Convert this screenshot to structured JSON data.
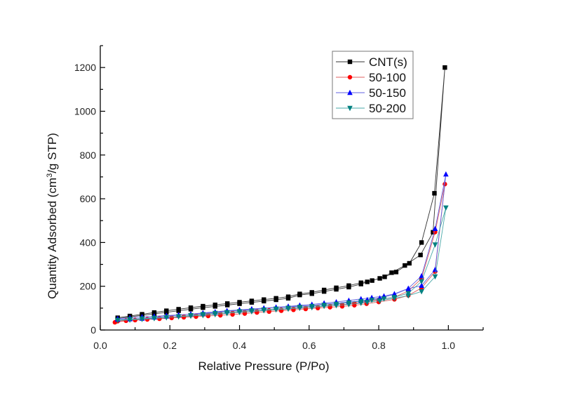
{
  "chart_data": {
    "type": "line",
    "title": "",
    "xlabel": "Relative Pressure (P/Po)",
    "ylabel_parts": [
      "Quantity Adsorbed (cm",
      "3",
      "/g STP)"
    ],
    "ylabel": "Quantity Adsorbed (cm3/g STP)",
    "xlim": [
      0.0,
      1.1
    ],
    "ylim": [
      0,
      1300
    ],
    "x_major_ticks": [
      0.0,
      0.2,
      0.4,
      0.6,
      0.8,
      1.0
    ],
    "x_minor_ticks": [
      0.1,
      0.3,
      0.5,
      0.7,
      0.9,
      1.1
    ],
    "x_tick_labels": [
      "0.0",
      "0.2",
      "0.4",
      "0.6",
      "0.8",
      "1.0"
    ],
    "y_major_ticks": [
      0,
      200,
      400,
      600,
      800,
      1000,
      1200
    ],
    "y_minor_ticks": [
      100,
      300,
      500,
      700,
      900,
      1100,
      1300
    ],
    "y_tick_labels": [
      "0",
      "200",
      "400",
      "600",
      "800",
      "1000",
      "1200"
    ],
    "grid": false,
    "legend_position": "top-right",
    "series": [
      {
        "name": "CNT(s)",
        "color": "#000000",
        "line_color": "#333333",
        "marker": "square",
        "x": [
          0.05,
          0.085,
          0.12,
          0.155,
          0.19,
          0.225,
          0.26,
          0.295,
          0.33,
          0.365,
          0.4,
          0.435,
          0.47,
          0.505,
          0.54,
          0.573,
          0.608,
          0.643,
          0.678,
          0.714,
          0.749,
          0.767,
          0.803,
          0.837,
          0.875,
          0.92,
          0.956,
          0.99,
          0.96,
          0.923,
          0.888,
          0.85,
          0.817,
          0.781,
          0.749,
          0.714,
          0.678,
          0.643,
          0.608,
          0.573,
          0.54,
          0.505,
          0.47,
          0.435,
          0.4,
          0.365,
          0.33,
          0.295,
          0.26,
          0.225,
          0.19,
          0.155,
          0.12,
          0.085,
          0.05
        ],
        "y": [
          52,
          60,
          67,
          74,
          81,
          88,
          95,
          102,
          108,
          114,
          120,
          126,
          132,
          138,
          145,
          160,
          166,
          176,
          186,
          196,
          210,
          220,
          236,
          262,
          295,
          343,
          447,
          1200,
          625,
          400,
          305,
          265,
          243,
          226,
          216,
          203,
          193,
          183,
          172,
          165,
          152,
          145,
          139,
          133,
          127,
          121,
          115,
          109,
          102,
          95,
          88,
          80,
          72,
          64,
          56
        ]
      },
      {
        "name": "50-100",
        "color": "#ff0000",
        "line_color": "#e06060",
        "marker": "circle",
        "x": [
          0.042,
          0.074,
          0.1,
          0.135,
          0.17,
          0.205,
          0.24,
          0.275,
          0.31,
          0.345,
          0.38,
          0.415,
          0.45,
          0.485,
          0.52,
          0.555,
          0.59,
          0.625,
          0.66,
          0.695,
          0.73,
          0.765,
          0.8,
          0.845,
          0.885,
          0.923,
          0.962,
          0.99,
          0.962,
          0.923,
          0.885,
          0.845,
          0.8,
          0.765,
          0.73,
          0.695,
          0.66,
          0.625,
          0.59,
          0.555,
          0.52,
          0.485,
          0.45,
          0.415,
          0.38,
          0.345,
          0.31,
          0.275,
          0.24,
          0.205,
          0.17,
          0.135,
          0.1,
          0.074,
          0.05
        ],
        "y": [
          35,
          42,
          45,
          48,
          51,
          55,
          58,
          61,
          64,
          67,
          71,
          75,
          80,
          84,
          88,
          92,
          96,
          100,
          104,
          108,
          113,
          120,
          128,
          140,
          158,
          192,
          267,
          667,
          448,
          235,
          178,
          150,
          138,
          130,
          122,
          116,
          110,
          105,
          101,
          97,
          93,
          90,
          86,
          82,
          78,
          74,
          70,
          66,
          62,
          58,
          54,
          50,
          46,
          43,
          40
        ]
      },
      {
        "name": "50-150",
        "color": "#0000ff",
        "line_color": "#6060e0",
        "marker": "triangle-up",
        "x": [
          0.05,
          0.085,
          0.12,
          0.155,
          0.19,
          0.225,
          0.26,
          0.295,
          0.33,
          0.364,
          0.4,
          0.435,
          0.47,
          0.505,
          0.54,
          0.573,
          0.608,
          0.643,
          0.678,
          0.714,
          0.749,
          0.767,
          0.803,
          0.845,
          0.885,
          0.923,
          0.962,
          0.993,
          0.962,
          0.923,
          0.885,
          0.845,
          0.815,
          0.78,
          0.749,
          0.714,
          0.678,
          0.643,
          0.608,
          0.573,
          0.54,
          0.505,
          0.47,
          0.435,
          0.4,
          0.364,
          0.33,
          0.295,
          0.26,
          0.225,
          0.19,
          0.155,
          0.12,
          0.085,
          0.05
        ],
        "y": [
          52,
          56,
          60,
          63,
          66,
          69,
          72,
          75,
          80,
          86,
          90,
          93,
          99,
          103,
          106,
          109,
          112,
          119,
          122,
          128,
          134,
          138,
          146,
          163,
          189,
          203,
          276,
          712,
          463,
          247,
          190,
          165,
          155,
          148,
          142,
          135,
          128,
          123,
          117,
          113,
          108,
          104,
          100,
          96,
          92,
          88,
          83,
          78,
          73,
          68,
          63,
          58,
          53,
          50,
          48
        ]
      },
      {
        "name": "50-200",
        "color": "#008080",
        "line_color": "#4aa8a8",
        "marker": "triangle-down",
        "x": [
          0.05,
          0.085,
          0.12,
          0.155,
          0.19,
          0.225,
          0.26,
          0.295,
          0.33,
          0.364,
          0.4,
          0.435,
          0.47,
          0.505,
          0.54,
          0.573,
          0.608,
          0.643,
          0.678,
          0.714,
          0.749,
          0.767,
          0.803,
          0.845,
          0.885,
          0.923,
          0.962,
          0.993,
          0.962,
          0.923,
          0.885,
          0.845,
          0.815,
          0.78,
          0.749,
          0.714,
          0.678,
          0.643,
          0.608,
          0.573,
          0.54,
          0.505,
          0.47,
          0.435,
          0.4,
          0.364,
          0.33,
          0.295,
          0.26,
          0.225,
          0.19,
          0.155,
          0.12,
          0.085,
          0.05
        ],
        "y": [
          45,
          49,
          52,
          55,
          58,
          61,
          64,
          67,
          71,
          76,
          81,
          84,
          89,
          93,
          96,
          100,
          103,
          109,
          112,
          117,
          123,
          127,
          134,
          145,
          157,
          176,
          244,
          559,
          390,
          222,
          168,
          150,
          143,
          137,
          131,
          125,
          119,
          114,
          109,
          105,
          101,
          97,
          93,
          89,
          85,
          81,
          77,
          72,
          67,
          62,
          57,
          53,
          49,
          46,
          44
        ]
      }
    ]
  }
}
